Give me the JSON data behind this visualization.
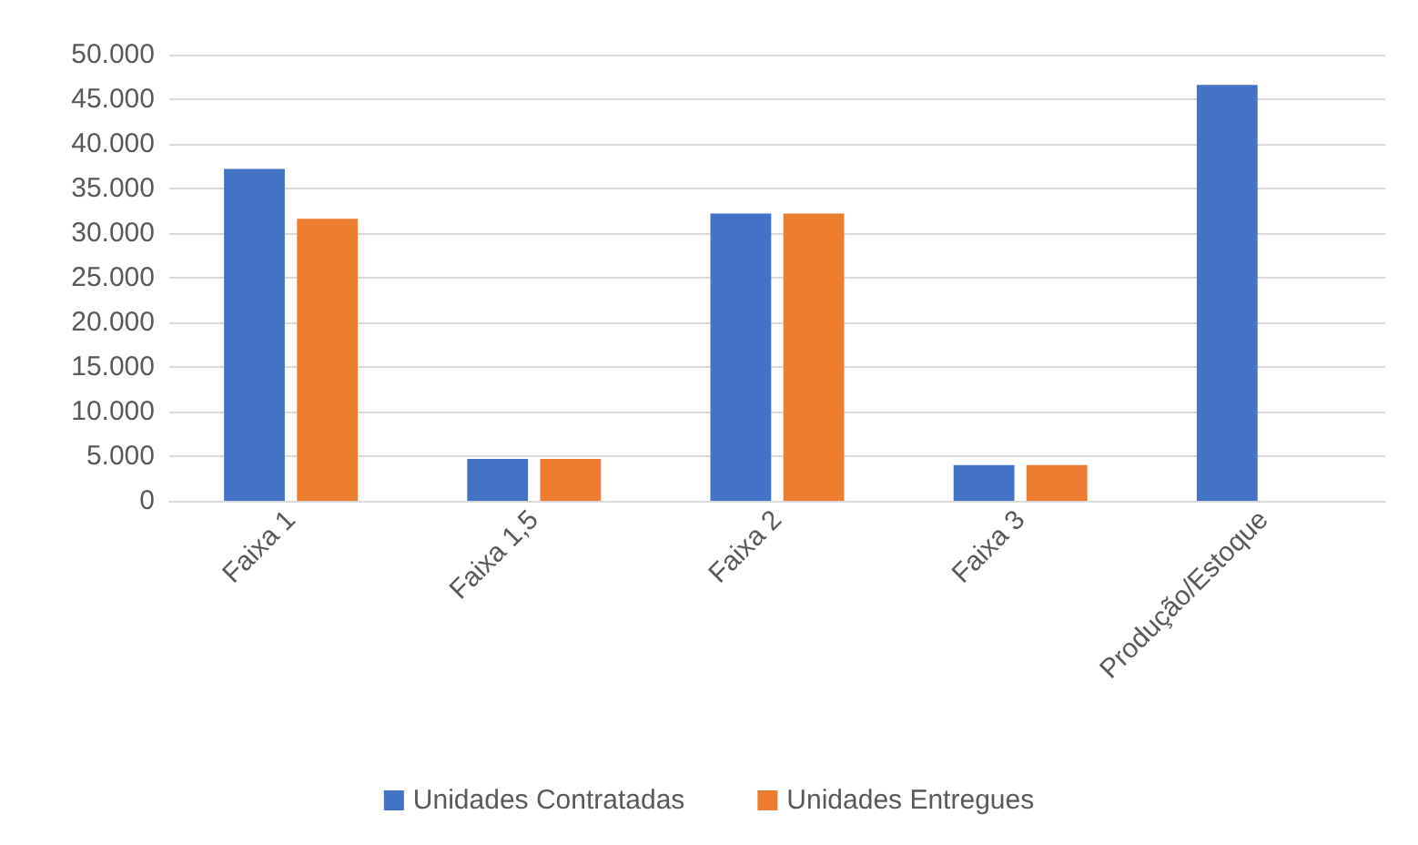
{
  "chart_data": {
    "type": "bar",
    "categories": [
      "Faixa 1",
      "Faixa 1,5",
      "Faixa 2",
      "Faixa 3",
      "Produção/Estoque"
    ],
    "series": [
      {
        "name": "Unidades Contratadas",
        "color": "#4472c4",
        "values": [
          37200,
          4700,
          32200,
          4000,
          46600
        ]
      },
      {
        "name": "Unidades Entregues",
        "color": "#ed7d31",
        "values": [
          31600,
          4700,
          32200,
          4000,
          null
        ]
      }
    ],
    "ylim": [
      0,
      50000
    ],
    "yticks": [
      {
        "value": 0,
        "label": "0"
      },
      {
        "value": 5000,
        "label": "5.000"
      },
      {
        "value": 10000,
        "label": "10.000"
      },
      {
        "value": 15000,
        "label": "15.000"
      },
      {
        "value": 20000,
        "label": "20.000"
      },
      {
        "value": 25000,
        "label": "25.000"
      },
      {
        "value": 30000,
        "label": "30.000"
      },
      {
        "value": 35000,
        "label": "35.000"
      },
      {
        "value": 40000,
        "label": "40.000"
      },
      {
        "value": 45000,
        "label": "45.000"
      },
      {
        "value": 50000,
        "label": "50.000"
      }
    ],
    "grid": "y",
    "legend": "bottom"
  }
}
